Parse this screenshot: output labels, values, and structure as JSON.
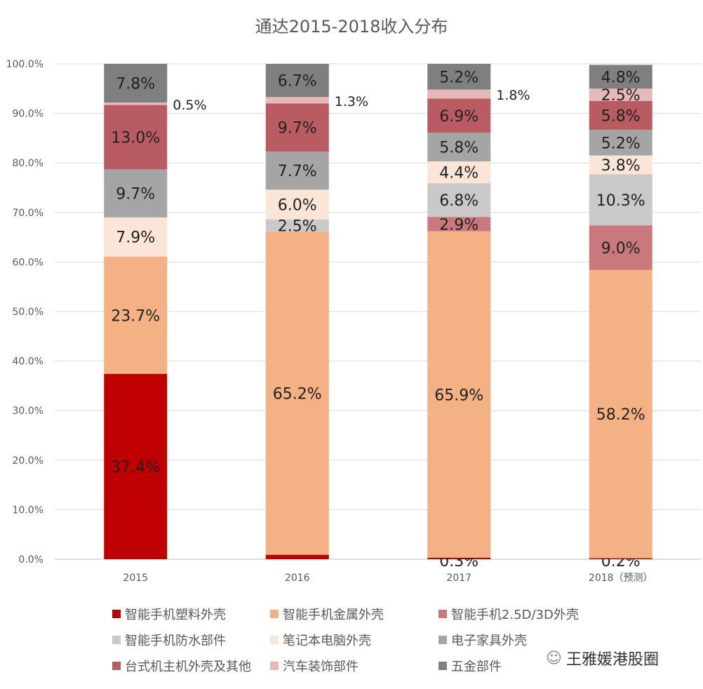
{
  "chart_data": {
    "type": "bar",
    "stacked": true,
    "title": "通达2015-2018收入分布",
    "categories": [
      "2015",
      "2016",
      "2017",
      "2018（预测）"
    ],
    "ylim": [
      0,
      100
    ],
    "yticks": [
      "0.0%",
      "10.0%",
      "20.0%",
      "30.0%",
      "40.0%",
      "50.0%",
      "60.0%",
      "70.0%",
      "80.0%",
      "90.0%",
      "100.0%"
    ],
    "grid": true,
    "legend_position": "bottom",
    "series": [
      {
        "name": "智能手机塑料外壳",
        "color": "#C00000",
        "values": [
          37.4,
          0.9,
          0.3,
          0.2
        ]
      },
      {
        "name": "智能手机金属外壳",
        "color": "#F4B183",
        "values": [
          23.7,
          65.2,
          65.9,
          58.2
        ]
      },
      {
        "name": "智能手机2.5D/3D外壳",
        "color": "#C9797B",
        "values": [
          0,
          0,
          2.9,
          9.0
        ]
      },
      {
        "name": "智能手机防水部件",
        "color": "#C9C9C9",
        "values": [
          0,
          2.5,
          6.8,
          10.3
        ]
      },
      {
        "name": "笔记本电脑外壳",
        "color": "#FBE5D6",
        "values": [
          7.9,
          6.0,
          4.4,
          3.8
        ]
      },
      {
        "name": "电子家具外壳",
        "color": "#A5A5A5",
        "values": [
          9.7,
          7.7,
          5.8,
          5.2
        ]
      },
      {
        "name": "台式机主机外壳及其他",
        "color": "#B85C62",
        "values": [
          13.0,
          9.7,
          6.9,
          5.8
        ]
      },
      {
        "name": "汽车装饰部件",
        "color": "#E6B9B8",
        "values": [
          0.5,
          1.3,
          1.8,
          2.5
        ]
      },
      {
        "name": "五金部件",
        "color": "#7F7F7F",
        "values": [
          7.8,
          6.7,
          5.2,
          4.8
        ]
      }
    ]
  },
  "watermark": "王雅媛港股圈"
}
